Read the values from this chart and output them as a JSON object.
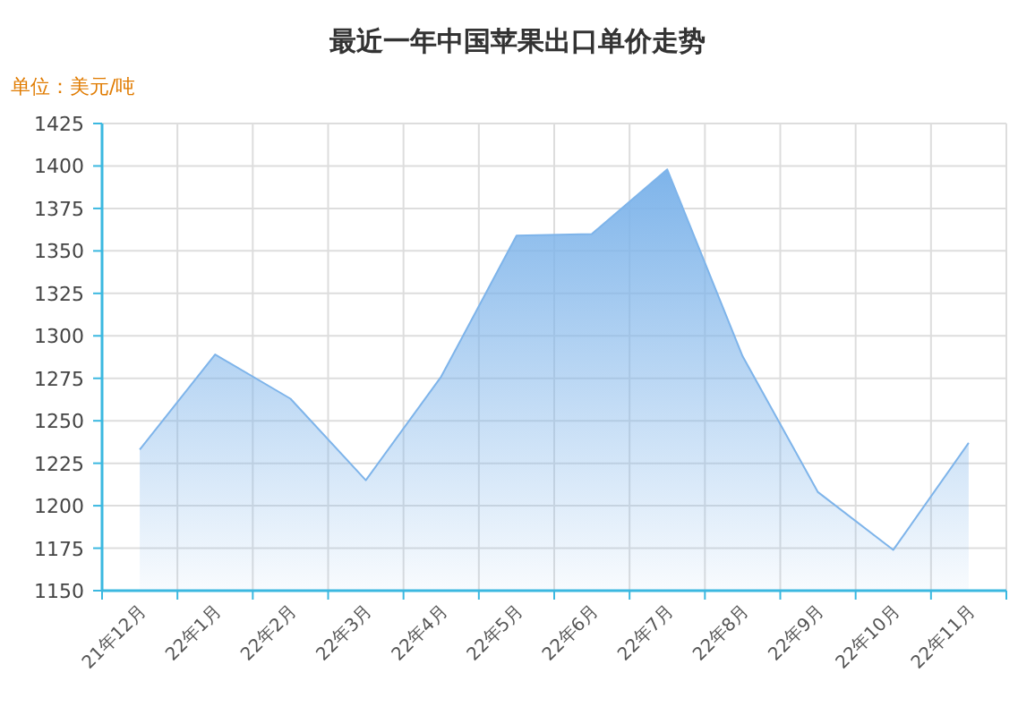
{
  "chart_data": {
    "type": "area",
    "title": "最近一年中国苹果出口单价走势",
    "ylabel": "单位：美元/吨",
    "categories": [
      "21年12月",
      "22年1月",
      "22年2月",
      "22年3月",
      "22年4月",
      "22年5月",
      "22年6月",
      "22年7月",
      "22年8月",
      "22年9月",
      "22年10月",
      "22年11月"
    ],
    "series": [
      {
        "color": "#7eb4ea",
        "values": [
          1233,
          1289,
          1263,
          1215,
          1276,
          1359,
          1360,
          1398,
          1288,
          1208,
          1174,
          1237
        ]
      }
    ],
    "ylim": [
      1150,
      1425
    ],
    "yticks": [
      1150,
      1175,
      1200,
      1225,
      1250,
      1275,
      1300,
      1325,
      1350,
      1375,
      1400,
      1425
    ],
    "grid": true
  }
}
